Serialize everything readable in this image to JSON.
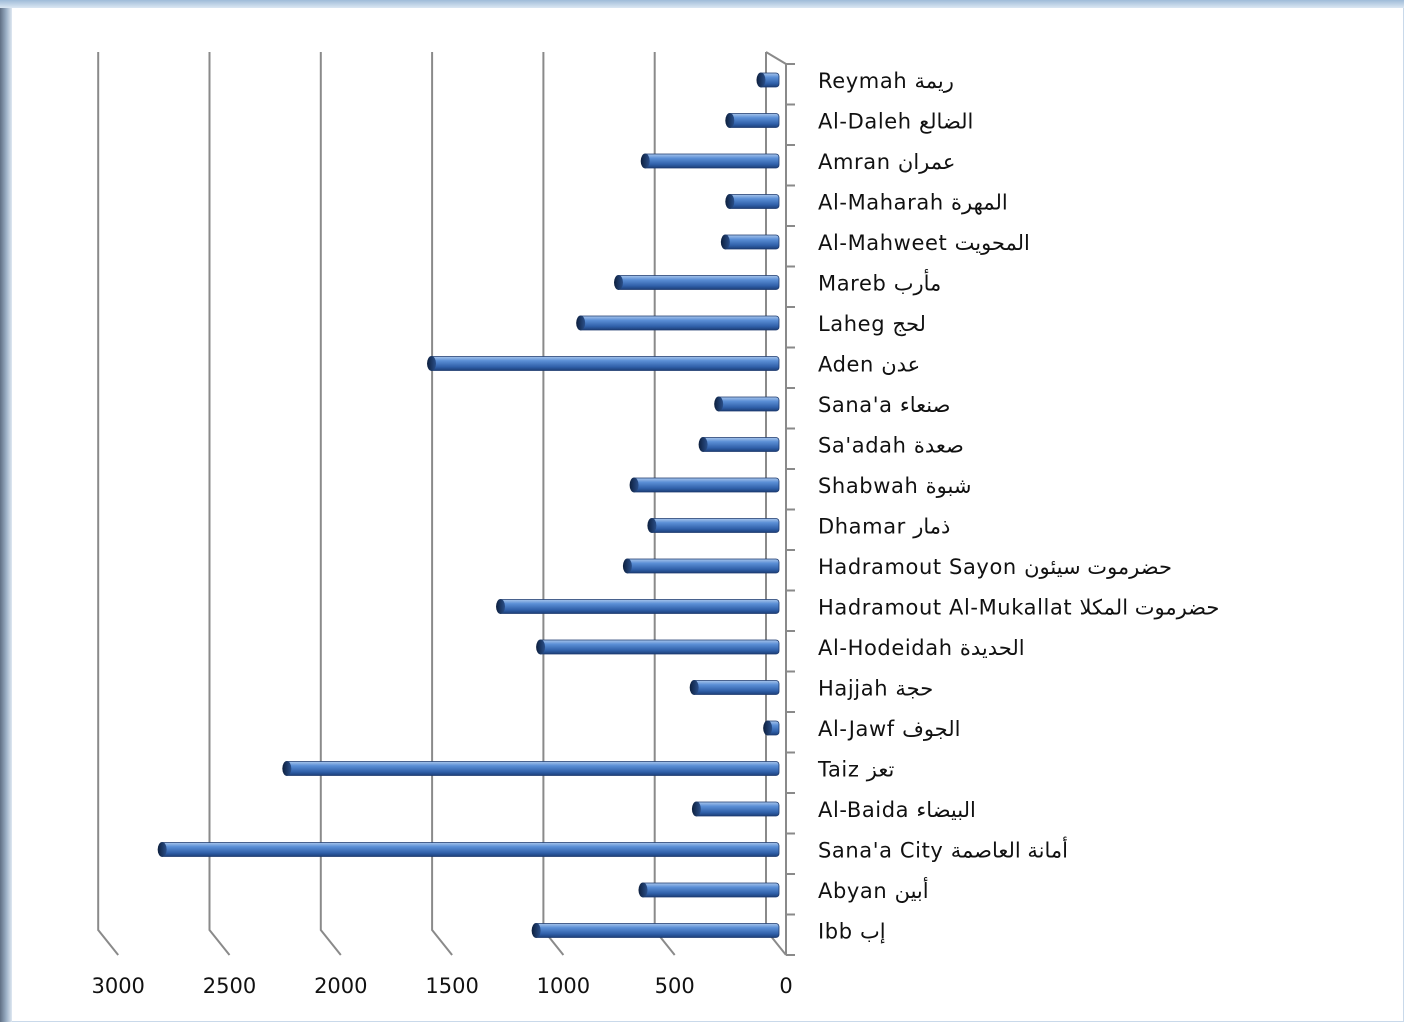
{
  "chart_data": {
    "type": "bar",
    "orientation": "horizontal",
    "title": "",
    "xlabel": "",
    "ylabel": "",
    "xlim": [
      0,
      3000
    ],
    "x_reversed": true,
    "grid": true,
    "legend": "none",
    "bar_color": "#3f72bf",
    "x_ticks": [
      "3000",
      "2500",
      "2000",
      "1500",
      "1000",
      "500",
      "0"
    ],
    "categories": [
      "Reymah ريمة",
      "Al-Daleh الضالع",
      "Amran عمران",
      "Al-Maharah المهرة",
      "Al-Mahweet المحويت",
      "Mareb مأرب",
      "Laheg لحج",
      "Aden عدن",
      "Sana'a صنعاء",
      "Sa'adah صعدة",
      "Shabwah شبوة",
      "Dhamar ذمار",
      "Hadramout Sayon حضرموت سيئون",
      "Hadramout Al-Mukallat حضرموت المكلا",
      "Al-Hodeidah الحديدة",
      "Hajjah حجة",
      "Al-Jawf الجوف",
      "Taiz تعز",
      "Al-Baida البيضاء",
      "Sana'a City أمانة العاصمة",
      "Abyan أبين",
      "Ibb إب"
    ],
    "values": [
      90,
      230,
      610,
      230,
      250,
      730,
      900,
      1570,
      280,
      350,
      660,
      580,
      690,
      1260,
      1080,
      390,
      60,
      2220,
      380,
      2780,
      620,
      1100
    ]
  }
}
